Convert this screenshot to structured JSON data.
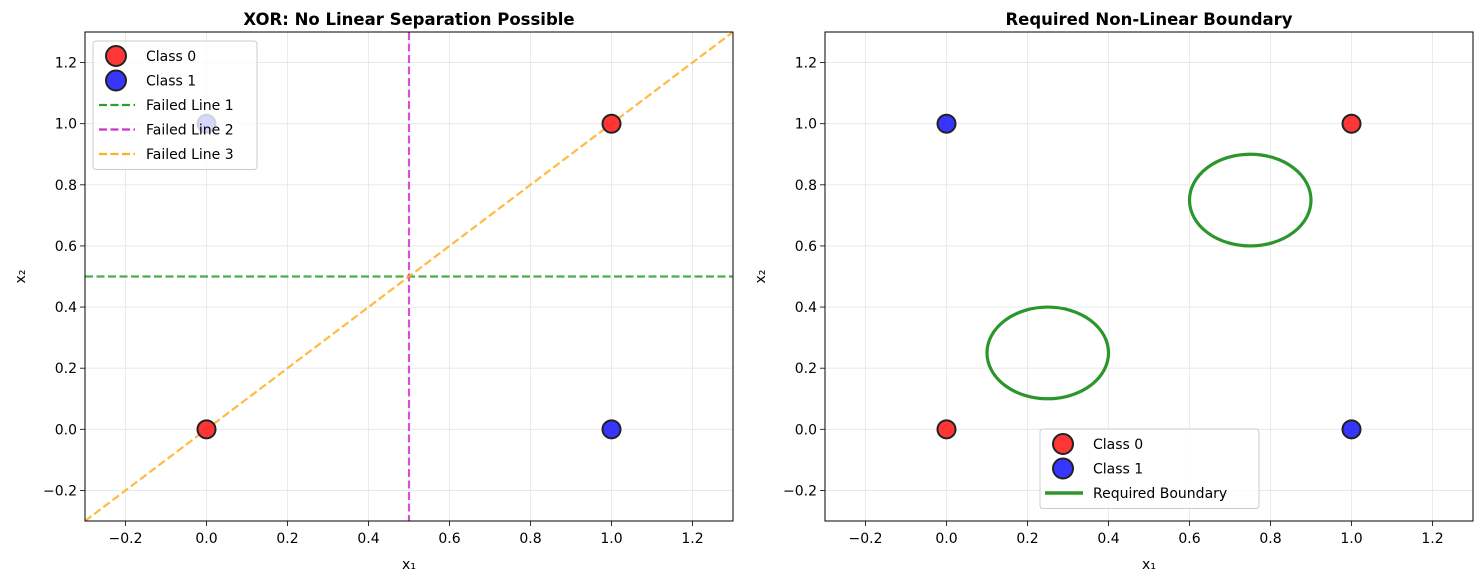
{
  "chart_data": [
    {
      "type": "scatter",
      "title": "XOR: No Linear Separation Possible",
      "xlabel": "x₁",
      "ylabel": "x₂",
      "xlim": [
        -0.3,
        1.3
      ],
      "ylim": [
        -0.3,
        1.3
      ],
      "xticks": [
        -0.2,
        0.0,
        0.2,
        0.4,
        0.6,
        0.8,
        1.0,
        1.2
      ],
      "yticks": [
        -0.2,
        0.0,
        0.2,
        0.4,
        0.6,
        0.8,
        1.0,
        1.2
      ],
      "grid": true,
      "legend_position": "top-left",
      "series": [
        {
          "name": "Class 0",
          "kind": "points",
          "color": "#ff2020",
          "points": [
            [
              0,
              0
            ],
            [
              1,
              1
            ]
          ]
        },
        {
          "name": "Class 1",
          "kind": "points",
          "color": "#2020ff",
          "points": [
            [
              0,
              1
            ],
            [
              1,
              0
            ]
          ]
        },
        {
          "name": "Failed Line 1",
          "kind": "hline",
          "color": "#2ca02c",
          "y": 0.5
        },
        {
          "name": "Failed Line 2",
          "kind": "vline",
          "color": "#cc33cc",
          "x": 0.5
        },
        {
          "name": "Failed Line 3",
          "kind": "line",
          "color": "#ffb020",
          "points": [
            [
              -0.3,
              -0.3
            ],
            [
              1.3,
              1.3
            ]
          ]
        }
      ]
    },
    {
      "type": "scatter",
      "title": "Required Non-Linear Boundary",
      "xlabel": "x₁",
      "ylabel": "x₂",
      "xlim": [
        -0.3,
        1.3
      ],
      "ylim": [
        -0.3,
        1.3
      ],
      "xticks": [
        -0.2,
        0.0,
        0.2,
        0.4,
        0.6,
        0.8,
        1.0,
        1.2
      ],
      "yticks": [
        -0.2,
        0.0,
        0.2,
        0.4,
        0.6,
        0.8,
        1.0,
        1.2
      ],
      "grid": true,
      "legend_position": "bottom-center",
      "series": [
        {
          "name": "Class 0",
          "kind": "points",
          "color": "#ff2020",
          "points": [
            [
              0,
              0
            ],
            [
              1,
              1
            ]
          ]
        },
        {
          "name": "Class 1",
          "kind": "points",
          "color": "#2020ff",
          "points": [
            [
              0,
              1
            ],
            [
              1,
              0
            ]
          ]
        },
        {
          "name": "Required Boundary",
          "kind": "circles",
          "color": "#2c962c",
          "circles": [
            {
              "cx": 0.25,
              "cy": 0.25,
              "r": 0.15
            },
            {
              "cx": 0.75,
              "cy": 0.75,
              "r": 0.15
            }
          ]
        }
      ]
    }
  ]
}
